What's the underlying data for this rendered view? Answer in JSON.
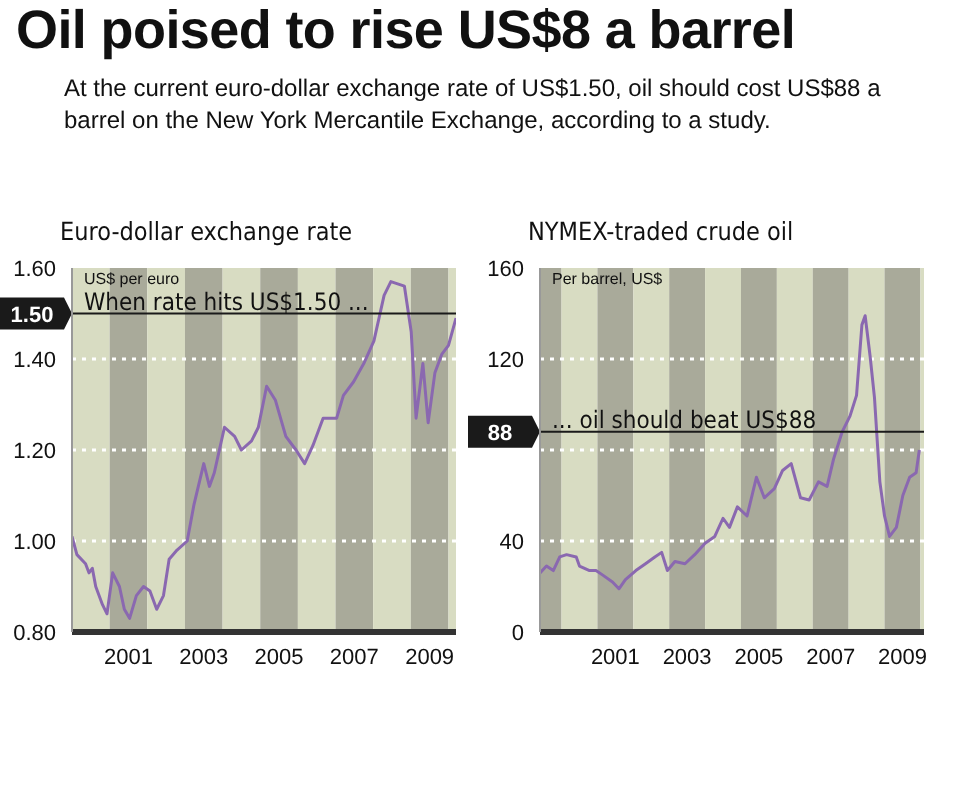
{
  "chart_data": [
    {
      "type": "line",
      "title": "Euro-dollar exchange rate",
      "ylabel": "US$ per euro",
      "annotations": [
        "Oil poised to rise US$8 a barrel",
        "At the current euro-dollar exchange rate of US$1.50, oil should cost US$88 a barrel on the New York Mercantile Exchange, according to a study.",
        "When rate hits US$1.50 ..."
      ],
      "x": [
        2000.0,
        2000.13,
        2000.36,
        2000.45,
        2000.54,
        2000.63,
        2000.81,
        2000.93,
        2001.08,
        2001.26,
        2001.39,
        2001.53,
        2001.71,
        2001.9,
        2002.07,
        2002.25,
        2002.43,
        2002.58,
        2002.79,
        2003.06,
        2003.24,
        2003.5,
        2003.65,
        2003.78,
        2004.05,
        2004.32,
        2004.5,
        2004.77,
        2004.95,
        2005.17,
        2005.4,
        2005.68,
        2005.95,
        2006.18,
        2006.4,
        2006.67,
        2007.03,
        2007.21,
        2007.48,
        2007.75,
        2008.02,
        2008.29,
        2008.47,
        2008.83,
        2009.01,
        2009.14,
        2009.32,
        2009.46,
        2009.64,
        2009.82,
        2010.0,
        2010.2
      ],
      "series": [
        {
          "color": "#8a68b0",
          "values": [
            1.01,
            0.97,
            0.95,
            0.93,
            0.94,
            0.9,
            0.86,
            0.84,
            0.93,
            0.9,
            0.85,
            0.83,
            0.88,
            0.9,
            0.89,
            0.85,
            0.88,
            0.96,
            0.98,
            1.0,
            1.08,
            1.17,
            1.12,
            1.15,
            1.25,
            1.23,
            1.2,
            1.22,
            1.25,
            1.34,
            1.31,
            1.23,
            1.2,
            1.17,
            1.21,
            1.27,
            1.27,
            1.32,
            1.35,
            1.39,
            1.44,
            1.54,
            1.57,
            1.56,
            1.46,
            1.27,
            1.39,
            1.26,
            1.37,
            1.41,
            1.43,
            1.49
          ]
        }
      ],
      "xlim": [
        2000,
        2010.2
      ],
      "xticks": [
        {
          "value": 2001.5,
          "label": "2001"
        },
        {
          "value": 2003.5,
          "label": "2003"
        },
        {
          "value": 2005.5,
          "label": "2005"
        },
        {
          "value": 2007.5,
          "label": "2007"
        },
        {
          "value": 2009.5,
          "label": "2009"
        }
      ],
      "ylim": [
        0.8,
        1.6
      ],
      "yticks": [
        {
          "value": 0.8,
          "label": "0.80"
        },
        {
          "value": 1.0,
          "label": "1.00"
        },
        {
          "value": 1.2,
          "label": "1.20"
        },
        {
          "value": 1.4,
          "label": "1.40"
        },
        {
          "value": 1.6,
          "label": "1.60"
        }
      ],
      "ref_lines": [
        {
          "axis": "y",
          "value": 1.5,
          "label": "1.50",
          "color": "#1a1a1a"
        }
      ],
      "bands": [
        {
          "axis": "x",
          "from": 2000,
          "to": 2001,
          "color": "#d8dcc2"
        },
        {
          "axis": "x",
          "from": 2001,
          "to": 2002,
          "color": "#a9aa9a"
        },
        {
          "axis": "x",
          "from": 2002,
          "to": 2003,
          "color": "#d8dcc2"
        },
        {
          "axis": "x",
          "from": 2003,
          "to": 2004,
          "color": "#a9aa9a"
        },
        {
          "axis": "x",
          "from": 2004,
          "to": 2005,
          "color": "#d8dcc2"
        },
        {
          "axis": "x",
          "from": 2005,
          "to": 2006,
          "color": "#a9aa9a"
        },
        {
          "axis": "x",
          "from": 2006,
          "to": 2007,
          "color": "#d8dcc2"
        },
        {
          "axis": "x",
          "from": 2007,
          "to": 2008,
          "color": "#a9aa9a"
        },
        {
          "axis": "x",
          "from": 2008,
          "to": 2009,
          "color": "#d8dcc2"
        },
        {
          "axis": "x",
          "from": 2009,
          "to": 2010,
          "color": "#a9aa9a"
        },
        {
          "axis": "x",
          "from": 2010,
          "to": 2010.2,
          "color": "#d8dcc2"
        }
      ],
      "grid": "y",
      "legend": false,
      "marker": "none",
      "line_style": "solid"
    },
    {
      "type": "line",
      "title": "NYMEX-traded crude oil",
      "ylabel": "Per barrel, US$",
      "annotations": [
        "... oil should beat US$88"
      ],
      "x": [
        1999.4,
        1999.58,
        1999.77,
        1999.95,
        2000.14,
        2000.41,
        2000.5,
        2000.78,
        2000.96,
        2001.15,
        2001.42,
        2001.6,
        2001.78,
        2002.07,
        2002.34,
        2002.6,
        2002.79,
        2002.95,
        2003.16,
        2003.44,
        2003.71,
        2004.0,
        2004.27,
        2004.5,
        2004.68,
        2004.9,
        2005.17,
        2005.43,
        2005.65,
        2005.93,
        2006.16,
        2006.4,
        2006.66,
        2006.9,
        2007.16,
        2007.4,
        2007.58,
        2007.82,
        2008.04,
        2008.22,
        2008.37,
        2008.46,
        2008.6,
        2008.72,
        2008.87,
        2009.0,
        2009.14,
        2009.33,
        2009.51,
        2009.7,
        2009.88,
        2009.97
      ],
      "series": [
        {
          "color": "#8a68b0",
          "values": [
            26,
            29,
            27,
            33,
            34,
            33,
            29,
            27,
            27,
            25,
            22,
            19,
            23,
            27,
            30,
            33,
            35,
            27,
            31,
            30,
            34,
            39,
            42,
            50,
            46,
            55,
            51,
            68,
            59,
            63,
            71,
            74,
            59,
            58,
            66,
            64,
            76,
            88,
            95,
            104,
            135,
            139,
            121,
            103,
            66,
            51,
            42,
            46,
            60,
            68,
            70,
            80
          ]
        }
      ],
      "xlim": [
        1999.4,
        2010.1
      ],
      "xticks": [
        {
          "value": 2001.5,
          "label": "2001"
        },
        {
          "value": 2003.5,
          "label": "2003"
        },
        {
          "value": 2005.5,
          "label": "2005"
        },
        {
          "value": 2007.5,
          "label": "2007"
        },
        {
          "value": 2009.5,
          "label": "2009"
        }
      ],
      "ylim": [
        0,
        160
      ],
      "yticks": [
        0,
        40,
        {
          "value": 80,
          "label": null
        },
        120,
        160
      ],
      "ref_lines": [
        {
          "axis": "y",
          "value": 88,
          "label": "88",
          "color": "#1a1a1a"
        }
      ],
      "bands": [
        {
          "axis": "x",
          "from": 1999.4,
          "to": 2000,
          "color": "#a9aa9a"
        },
        {
          "axis": "x",
          "from": 2000,
          "to": 2001,
          "color": "#d8dcc2"
        },
        {
          "axis": "x",
          "from": 2001,
          "to": 2002,
          "color": "#a9aa9a"
        },
        {
          "axis": "x",
          "from": 2002,
          "to": 2003,
          "color": "#d8dcc2"
        },
        {
          "axis": "x",
          "from": 2003,
          "to": 2004,
          "color": "#a9aa9a"
        },
        {
          "axis": "x",
          "from": 2004,
          "to": 2005,
          "color": "#d8dcc2"
        },
        {
          "axis": "x",
          "from": 2005,
          "to": 2006,
          "color": "#a9aa9a"
        },
        {
          "axis": "x",
          "from": 2006,
          "to": 2007,
          "color": "#d8dcc2"
        },
        {
          "axis": "x",
          "from": 2007,
          "to": 2008,
          "color": "#a9aa9a"
        },
        {
          "axis": "x",
          "from": 2008,
          "to": 2009,
          "color": "#d8dcc2"
        },
        {
          "axis": "x",
          "from": 2009,
          "to": 2010,
          "color": "#a9aa9a"
        },
        {
          "axis": "x",
          "from": 2010,
          "to": 2010.1,
          "color": "#d8dcc2"
        }
      ],
      "grid": "y",
      "legend": false,
      "marker": "none",
      "line_style": "solid"
    }
  ]
}
